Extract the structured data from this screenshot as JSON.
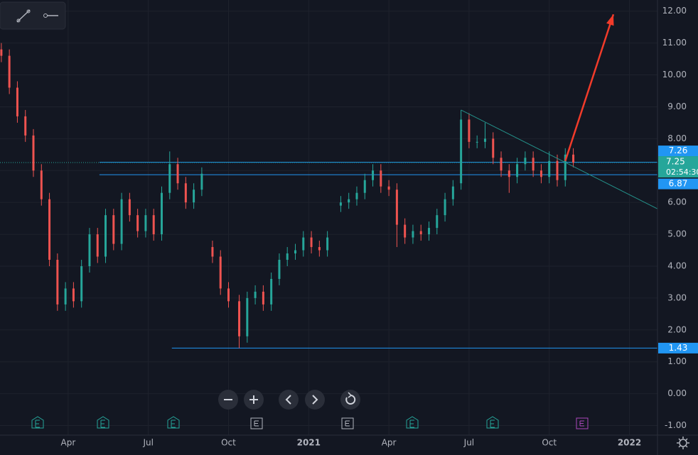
{
  "chart_data": {
    "type": "candlestick",
    "up_color": "#26a69a",
    "down_color": "#ef5350",
    "grid": true,
    "xlim": [
      0.45,
      25.05
    ],
    "ylim": [
      -1.3,
      12.35
    ],
    "xticks": [
      {
        "value": 3,
        "label": "Apr"
      },
      {
        "value": 6,
        "label": "Jul"
      },
      {
        "value": 9,
        "label": "Oct"
      },
      {
        "value": 12,
        "label": "2021"
      },
      {
        "value": 15,
        "label": "Apr"
      },
      {
        "value": 18,
        "label": "Jul"
      },
      {
        "value": 21,
        "label": "Oct"
      },
      {
        "value": 24,
        "label": "2022"
      }
    ],
    "yticks": [
      {
        "value": 12,
        "label": "12.00"
      },
      {
        "value": 11,
        "label": "11.00"
      },
      {
        "value": 10,
        "label": "10.00"
      },
      {
        "value": 9,
        "label": "9.00"
      },
      {
        "value": 8,
        "label": "8.00"
      },
      {
        "value": 7,
        "label": "7.00"
      },
      {
        "value": 6,
        "label": "6.00"
      },
      {
        "value": 5,
        "label": "5.00"
      },
      {
        "value": 4,
        "label": "4.00"
      },
      {
        "value": 3,
        "label": "3.00"
      },
      {
        "value": 2,
        "label": "2.00"
      },
      {
        "value": 1,
        "label": "1.00"
      },
      {
        "value": 0,
        "label": "0.00"
      },
      {
        "value": -1,
        "label": "-1.00"
      }
    ],
    "x": [
      0.5,
      0.8,
      1.1,
      1.4,
      1.7,
      2.0,
      2.3,
      2.6,
      2.9,
      3.2,
      3.5,
      3.8,
      4.1,
      4.4,
      4.7,
      5.0,
      5.3,
      5.6,
      5.9,
      6.2,
      6.5,
      6.8,
      7.1,
      7.4,
      7.7,
      8.0,
      8.4,
      8.7,
      9.0,
      9.4,
      9.7,
      10.0,
      10.3,
      10.6,
      10.9,
      11.2,
      11.5,
      11.8,
      12.1,
      12.4,
      12.7,
      13.2,
      13.5,
      13.8,
      14.1,
      14.4,
      14.7,
      15.0,
      15.3,
      15.6,
      15.9,
      16.2,
      16.5,
      16.8,
      17.1,
      17.4,
      17.7,
      18.0,
      18.3,
      18.6,
      18.9,
      19.2,
      19.5,
      19.8,
      20.1,
      20.4,
      20.7,
      21.0,
      21.3,
      21.6,
      21.9
    ],
    "open": [
      10.8,
      10.6,
      9.6,
      8.7,
      8.1,
      7.0,
      6.1,
      4.2,
      2.8,
      3.3,
      2.9,
      4.0,
      5.0,
      4.3,
      5.6,
      4.7,
      6.1,
      5.6,
      5.1,
      5.6,
      5.0,
      6.3,
      7.2,
      6.6,
      6.0,
      6.4,
      4.6,
      4.3,
      3.3,
      2.9,
      1.8,
      3.0,
      3.2,
      2.8,
      3.6,
      4.2,
      4.4,
      4.5,
      4.9,
      4.6,
      4.5,
      5.9,
      6.0,
      6.1,
      6.3,
      6.7,
      7.0,
      6.5,
      6.4,
      5.3,
      4.9,
      5.1,
      5.0,
      5.2,
      5.6,
      6.1,
      6.6,
      8.6,
      7.9,
      7.9,
      8.0,
      7.4,
      7.0,
      6.8,
      7.2,
      7.4,
      7.0,
      6.8,
      7.3,
      6.7,
      7.5
    ],
    "high": [
      11.0,
      10.8,
      9.8,
      8.9,
      8.3,
      7.2,
      6.3,
      4.4,
      3.5,
      3.5,
      4.2,
      5.2,
      5.2,
      5.8,
      5.8,
      6.3,
      6.3,
      5.8,
      5.8,
      5.8,
      6.5,
      7.6,
      7.4,
      6.8,
      6.6,
      7.1,
      4.8,
      4.5,
      3.5,
      3.1,
      3.2,
      3.4,
      3.4,
      3.8,
      4.4,
      4.6,
      4.7,
      5.1,
      5.1,
      4.8,
      5.1,
      6.2,
      6.3,
      6.5,
      6.9,
      7.2,
      7.2,
      6.7,
      6.6,
      5.5,
      5.3,
      5.3,
      5.4,
      5.8,
      6.3,
      6.7,
      8.9,
      8.8,
      8.1,
      8.5,
      8.2,
      7.6,
      7.2,
      7.4,
      7.6,
      7.6,
      7.2,
      7.6,
      7.5,
      7.7,
      7.7
    ],
    "low": [
      10.4,
      9.4,
      8.5,
      7.9,
      6.8,
      5.9,
      4.0,
      2.6,
      2.6,
      2.7,
      2.7,
      3.8,
      4.1,
      4.1,
      4.5,
      4.5,
      5.4,
      4.9,
      4.9,
      4.8,
      4.8,
      6.1,
      6.4,
      5.8,
      5.8,
      6.2,
      4.1,
      3.1,
      2.7,
      1.43,
      1.6,
      2.8,
      2.6,
      2.6,
      3.4,
      4.0,
      4.2,
      4.3,
      4.4,
      4.3,
      4.3,
      5.7,
      5.8,
      5.9,
      6.1,
      6.5,
      6.3,
      6.2,
      4.6,
      4.7,
      4.7,
      4.8,
      4.8,
      5.0,
      5.4,
      5.9,
      6.4,
      7.7,
      7.7,
      7.7,
      7.2,
      6.8,
      6.3,
      6.6,
      7.0,
      6.8,
      6.6,
      6.6,
      6.5,
      6.5,
      7.1
    ],
    "close": [
      10.6,
      9.6,
      8.7,
      8.1,
      7.0,
      6.1,
      4.2,
      2.8,
      3.3,
      2.9,
      4.0,
      5.0,
      4.3,
      5.6,
      4.7,
      6.1,
      5.6,
      5.1,
      5.6,
      5.0,
      6.3,
      7.2,
      6.6,
      6.0,
      6.4,
      6.9,
      4.3,
      3.3,
      2.9,
      1.8,
      3.0,
      3.2,
      2.8,
      3.6,
      4.2,
      4.4,
      4.5,
      4.9,
      4.6,
      4.5,
      4.9,
      6.0,
      6.1,
      6.3,
      6.7,
      7.0,
      6.5,
      6.4,
      5.3,
      4.9,
      5.1,
      5.0,
      5.2,
      5.6,
      6.1,
      6.5,
      8.6,
      7.9,
      7.9,
      8.0,
      7.4,
      7.0,
      6.8,
      7.2,
      7.4,
      7.0,
      6.8,
      7.3,
      6.7,
      7.5,
      7.25
    ],
    "level_color": "#2196f3",
    "levels": [
      {
        "value": 7.26,
        "from": 4.17
      },
      {
        "value": 6.87,
        "from": 4.17
      },
      {
        "value": 1.43,
        "from": 6.88
      }
    ],
    "last_price": {
      "value": 7.25,
      "countdown": "02:54:30"
    },
    "trend_line": {
      "x": [
        17.7,
        25.05
      ],
      "y": [
        8.9,
        5.8
      ],
      "color": "#24918a"
    },
    "arrow": {
      "x": [
        21.6,
        23.4
      ],
      "y": [
        7.3,
        11.9
      ],
      "color": "#f23b2a"
    }
  }
}
